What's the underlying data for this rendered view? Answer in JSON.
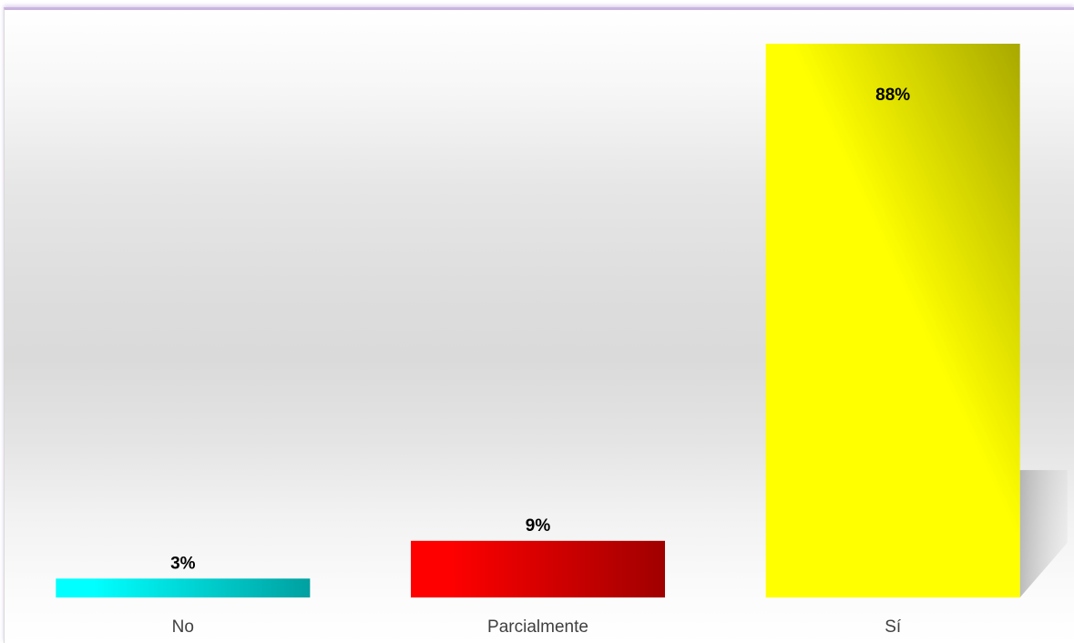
{
  "chart_data": {
    "type": "bar",
    "categories": [
      "No",
      "Parcialmente",
      "Sí"
    ],
    "values": [
      3,
      9,
      88
    ],
    "data_labels": [
      "3%",
      "9%",
      "88%"
    ],
    "unit": "%",
    "title": "",
    "xlabel": "",
    "ylabel": "",
    "ylim": [
      0,
      88
    ],
    "grid": false,
    "legend": "none",
    "colors": [
      {
        "from": "#00ffff",
        "to": "#00a0a0"
      },
      {
        "from": "#ff0000",
        "to": "#a00000"
      },
      {
        "from": "#ffff00",
        "to": "#a8a800"
      }
    ]
  }
}
